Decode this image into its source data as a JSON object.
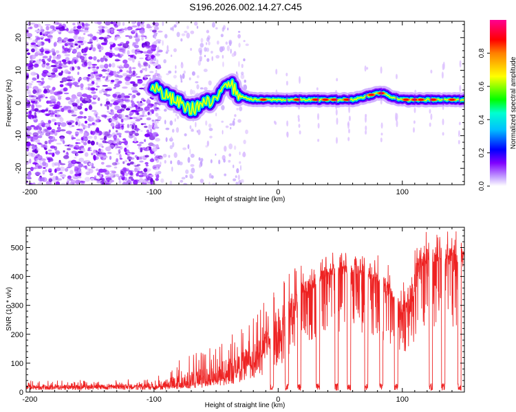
{
  "title": "S196.2026.002.14.27.C45",
  "chart_data": [
    {
      "type": "heatmap",
      "xlabel": "Height of straight line (km)",
      "ylabel": "Frequency (Hz)",
      "xlim": [
        -203,
        150
      ],
      "ylim": [
        -25,
        25
      ],
      "x_ticks": [
        -200,
        -100,
        0,
        100
      ],
      "x_tick_labels": [
        "-200",
        "-100",
        "0",
        "100"
      ],
      "y_ticks": [
        -20,
        -10,
        0,
        10,
        20
      ],
      "y_tick_labels": [
        "-20",
        "-10",
        "0",
        "10",
        "20"
      ],
      "colorbar": {
        "label": "Normalized spectral amplitude",
        "range": [
          0,
          1
        ],
        "ticks": [
          0.0,
          0.2,
          0.4,
          0.6,
          0.8
        ],
        "tick_labels": [
          "0.0",
          "0.2",
          "0.4",
          "0.6",
          "0.8"
        ],
        "colors": [
          "#ffffff",
          "#7f00ff",
          "#0000ff",
          "#00ffff",
          "#00ff00",
          "#ffff00",
          "#ff8000",
          "#ff0000",
          "#ff00ff"
        ]
      },
      "ridge": {
        "x": [
          -100,
          -90,
          -80,
          -70,
          -60,
          -50,
          -45,
          -40,
          -35,
          -30,
          -20,
          -15,
          0,
          10,
          20,
          40,
          60,
          70,
          80,
          85,
          90,
          100,
          120,
          140,
          150
        ],
        "frequency": [
          5,
          2,
          0,
          -2,
          0,
          0,
          6,
          7,
          4,
          2,
          1,
          1,
          1,
          1,
          1,
          1,
          1,
          2,
          3,
          3,
          2,
          1,
          1,
          1,
          1
        ]
      }
    },
    {
      "type": "line",
      "xlabel": "Height of straight line (km)",
      "ylabel": "SNR (10 * v/v)",
      "xlim": [
        -203,
        150
      ],
      "ylim": [
        0,
        570
      ],
      "x_ticks": [
        -200,
        -100,
        0,
        100
      ],
      "x_tick_labels": [
        "-200",
        "-100",
        "0",
        "100"
      ],
      "y_ticks": [
        0,
        100,
        200,
        300,
        400,
        500
      ],
      "y_tick_labels": [
        "0",
        "100",
        "200",
        "300",
        "400",
        "500"
      ],
      "color": "#ee2222",
      "envelope": {
        "x": [
          -203,
          -100,
          -80,
          -60,
          -40,
          -20,
          -10,
          0,
          10,
          20,
          40,
          60,
          80,
          100,
          108,
          112,
          130,
          150
        ],
        "base": [
          15,
          15,
          20,
          30,
          50,
          90,
          130,
          180,
          230,
          330,
          400,
          410,
          380,
          260,
          280,
          430,
          450,
          450
        ],
        "peak": [
          40,
          45,
          110,
          150,
          190,
          260,
          320,
          380,
          470,
          440,
          470,
          480,
          490,
          380,
          560,
          570,
          570,
          560
        ]
      },
      "dropouts": [
        -5,
        7,
        17,
        32,
        47,
        57,
        71,
        83,
        95,
        123,
        133,
        146
      ]
    }
  ]
}
